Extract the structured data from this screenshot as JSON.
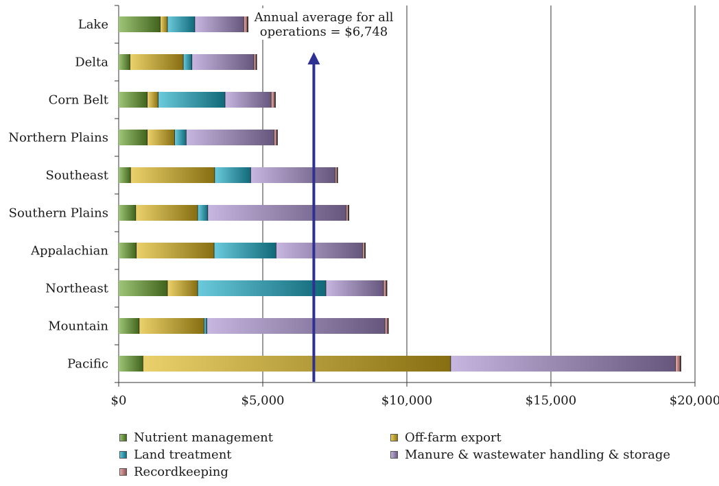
{
  "chart_data": {
    "type": "bar",
    "orientation": "horizontal",
    "stacked": true,
    "title": "",
    "xlabel": "",
    "ylabel": "",
    "xlim": [
      0,
      20000
    ],
    "x_ticks": [
      0,
      5000,
      10000,
      15000,
      20000
    ],
    "x_tick_labels": [
      "$0",
      "$5,000",
      "$10,000",
      "$15,000",
      "$20,000"
    ],
    "grid": "vertical",
    "legend_position": "bottom",
    "categories": [
      "Lake",
      "Delta",
      "Corn Belt",
      "Northern Plains",
      "Southeast",
      "Southern Plains",
      "Appalachian",
      "Northeast",
      "Mountain",
      "Pacific"
    ],
    "series": [
      {
        "name": "Nutrient management",
        "color": "#6aa52e",
        "values": [
          1450,
          400,
          1000,
          1000,
          420,
          600,
          620,
          1700,
          720,
          850
        ]
      },
      {
        "name": "Off-farm export",
        "color": "#e0b81c",
        "values": [
          250,
          1850,
          380,
          950,
          2920,
          2150,
          2700,
          1050,
          2250,
          10680
        ]
      },
      {
        "name": "Land treatment",
        "color": "#1aaec8",
        "values": [
          950,
          300,
          2320,
          400,
          1250,
          350,
          2150,
          4450,
          100,
          0
        ]
      },
      {
        "name": "Manure & wastewater handling & storage",
        "color": "#a88fcf",
        "values": [
          1700,
          2150,
          1600,
          3050,
          2930,
          4800,
          3000,
          2000,
          6180,
          7800
        ]
      },
      {
        "name": "Recordkeeping",
        "color": "#de8585",
        "values": [
          130,
          80,
          130,
          100,
          70,
          80,
          80,
          100,
          100,
          170
        ]
      }
    ],
    "annotation": {
      "text_lines": [
        "Annual average for all",
        "operations = $6,748"
      ],
      "value": 6748,
      "arrow_color": "#2e3192"
    }
  }
}
